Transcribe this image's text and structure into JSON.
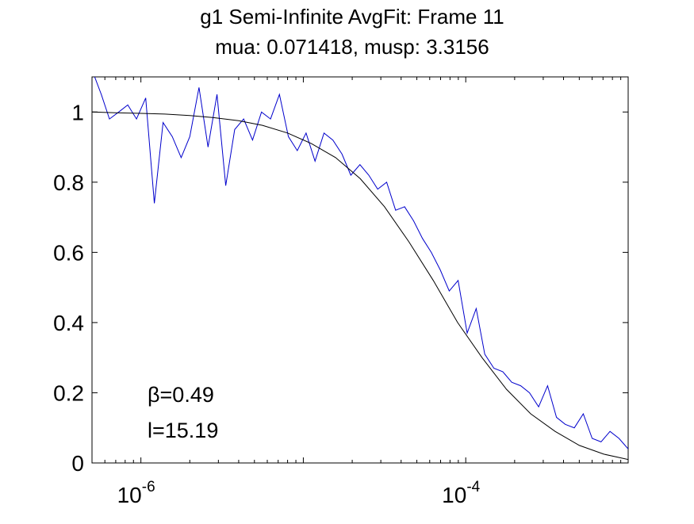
{
  "chart_data": {
    "type": "line",
    "title": "g1 Semi-Infinite AvgFit: Frame 11",
    "subtitle": "mua: 0.071418, musp: 3.3156",
    "xlabel": "",
    "ylabel": "",
    "xscale": "log",
    "xlim": [
      5e-07,
      0.001
    ],
    "ylim": [
      0,
      1.1
    ],
    "grid": false,
    "legend": "none",
    "x_ticks": [
      {
        "value": 1e-06,
        "base": "10",
        "exp": "-6"
      },
      {
        "value": 0.0001,
        "base": "10",
        "exp": "-4"
      }
    ],
    "y_ticks": [
      {
        "value": 0,
        "label": "0"
      },
      {
        "value": 0.2,
        "label": "0.2"
      },
      {
        "value": 0.4,
        "label": "0.4"
      },
      {
        "value": 0.6,
        "label": "0.6"
      },
      {
        "value": 0.8,
        "label": "0.8"
      },
      {
        "value": 1,
        "label": "1"
      }
    ],
    "annotations": [
      {
        "text": "β=0.49",
        "x": 2e-06,
        "y": 0.19
      },
      {
        "text": "l=15.19",
        "x": 2e-06,
        "y": 0.09
      }
    ],
    "series": [
      {
        "color": "#0000cc",
        "x": [
          5e-07,
          5.7e-07,
          6.4e-07,
          7.3e-07,
          8.3e-07,
          9.4e-07,
          1.07e-06,
          1.21e-06,
          1.37e-06,
          1.56e-06,
          1.77e-06,
          2e-06,
          2.28e-06,
          2.59e-06,
          2.94e-06,
          3.33e-06,
          3.78e-06,
          4.29e-06,
          4.87e-06,
          5.53e-06,
          6.28e-06,
          7.13e-06,
          8.09e-06,
          9.18e-06,
          1.04e-05,
          1.18e-05,
          1.34e-05,
          1.52e-05,
          1.73e-05,
          1.96e-05,
          2.23e-05,
          2.53e-05,
          2.87e-05,
          3.26e-05,
          3.7e-05,
          4.2e-05,
          4.77e-05,
          5.41e-05,
          6.14e-05,
          6.97e-05,
          7.91e-05,
          8.98e-05,
          0.000102,
          0.000116,
          0.000131,
          0.000149,
          0.000169,
          0.000192,
          0.000218,
          0.000247,
          0.000281,
          0.000319,
          0.000362,
          0.00041,
          0.000466,
          0.000529,
          0.0006,
          0.000681,
          0.000773,
          0.000878,
          0.001
        ],
        "values": [
          1.12,
          1.05,
          0.98,
          1.0,
          1.02,
          0.98,
          1.04,
          0.74,
          0.97,
          0.93,
          0.87,
          0.93,
          1.07,
          0.9,
          1.05,
          0.79,
          0.95,
          0.98,
          0.92,
          1.0,
          0.98,
          1.05,
          0.93,
          0.89,
          0.94,
          0.86,
          0.94,
          0.92,
          0.88,
          0.82,
          0.85,
          0.82,
          0.78,
          0.8,
          0.72,
          0.73,
          0.69,
          0.64,
          0.6,
          0.55,
          0.49,
          0.52,
          0.37,
          0.44,
          0.31,
          0.27,
          0.26,
          0.23,
          0.22,
          0.2,
          0.16,
          0.22,
          0.13,
          0.11,
          0.1,
          0.14,
          0.07,
          0.06,
          0.09,
          0.07,
          0.04
        ]
      },
      {
        "color": "#000000",
        "x": [
          5e-07,
          7e-07,
          1e-06,
          1.4e-06,
          2e-06,
          2.8e-06,
          4e-06,
          5.6e-06,
          8e-06,
          1.12e-05,
          1.58e-05,
          2.24e-05,
          3.16e-05,
          4.47e-05,
          6.31e-05,
          8.91e-05,
          0.000126,
          0.000178,
          0.000251,
          0.000355,
          0.000501,
          0.000708,
          0.001
        ],
        "values": [
          1.0,
          0.998,
          0.996,
          0.994,
          0.99,
          0.984,
          0.975,
          0.962,
          0.94,
          0.91,
          0.87,
          0.81,
          0.73,
          0.63,
          0.52,
          0.4,
          0.3,
          0.21,
          0.14,
          0.09,
          0.05,
          0.025,
          0.01
        ]
      }
    ]
  }
}
